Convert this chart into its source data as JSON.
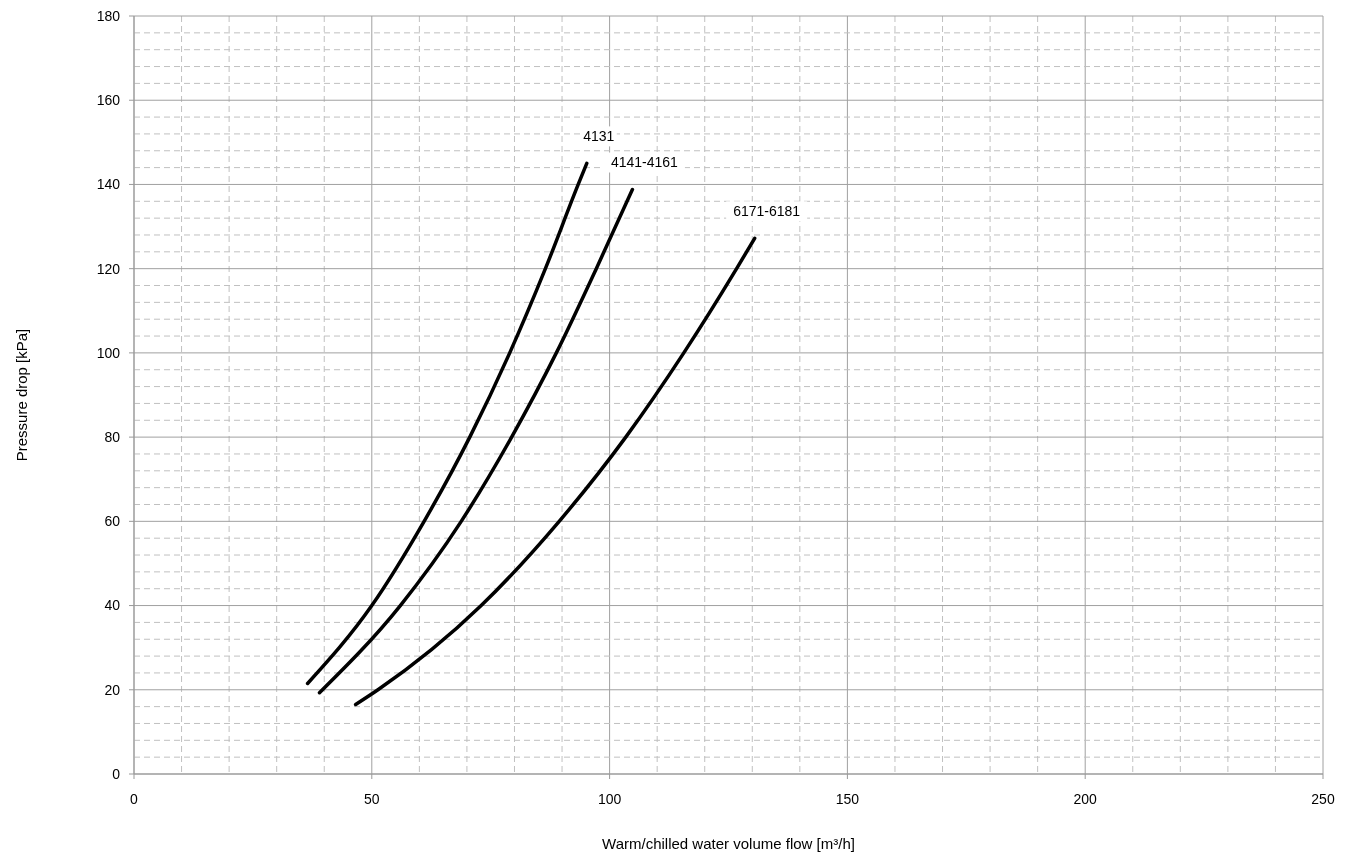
{
  "chart_data": {
    "type": "line",
    "xlabel": "Warm/chilled water volume flow [m³/h]",
    "ylabel": "Pressure drop [kPa]",
    "xlim": [
      0,
      250
    ],
    "ylim": [
      0,
      180
    ],
    "xticks": [
      0,
      {
        "value": 10,
        "label": null
      },
      {
        "value": 20,
        "label": null
      },
      {
        "value": 30,
        "label": null
      },
      {
        "value": 40,
        "label": null
      },
      50,
      {
        "value": 60,
        "label": null
      },
      {
        "value": 70,
        "label": null
      },
      {
        "value": 80,
        "label": null
      },
      {
        "value": 90,
        "label": null
      },
      100,
      {
        "value": 110,
        "label": null
      },
      {
        "value": 120,
        "label": null
      },
      {
        "value": 130,
        "label": null
      },
      {
        "value": 140,
        "label": null
      },
      150,
      {
        "value": 160,
        "label": null
      },
      {
        "value": 170,
        "label": null
      },
      {
        "value": 180,
        "label": null
      },
      {
        "value": 190,
        "label": null
      },
      200,
      {
        "value": 210,
        "label": null
      },
      {
        "value": 220,
        "label": null
      },
      {
        "value": 230,
        "label": null
      },
      {
        "value": 240,
        "label": null
      },
      250
    ],
    "yticks": [
      0,
      {
        "value": 4,
        "label": null
      },
      {
        "value": 8,
        "label": null
      },
      {
        "value": 12,
        "label": null
      },
      {
        "value": 16,
        "label": null
      },
      20,
      {
        "value": 24,
        "label": null
      },
      {
        "value": 28,
        "label": null
      },
      {
        "value": 32,
        "label": null
      },
      {
        "value": 36,
        "label": null
      },
      40,
      {
        "value": 44,
        "label": null
      },
      {
        "value": 48,
        "label": null
      },
      {
        "value": 52,
        "label": null
      },
      {
        "value": 56,
        "label": null
      },
      60,
      {
        "value": 64,
        "label": null
      },
      {
        "value": 68,
        "label": null
      },
      {
        "value": 72,
        "label": null
      },
      {
        "value": 76,
        "label": null
      },
      80,
      {
        "value": 84,
        "label": null
      },
      {
        "value": 88,
        "label": null
      },
      {
        "value": 92,
        "label": null
      },
      {
        "value": 96,
        "label": null
      },
      100,
      {
        "value": 104,
        "label": null
      },
      {
        "value": 108,
        "label": null
      },
      {
        "value": 112,
        "label": null
      },
      {
        "value": 116,
        "label": null
      },
      120,
      {
        "value": 124,
        "label": null
      },
      {
        "value": 128,
        "label": null
      },
      {
        "value": 132,
        "label": null
      },
      {
        "value": 136,
        "label": null
      },
      140,
      {
        "value": 144,
        "label": null
      },
      {
        "value": 148,
        "label": null
      },
      {
        "value": 152,
        "label": null
      },
      {
        "value": 156,
        "label": null
      },
      160,
      {
        "value": 164,
        "label": null
      },
      {
        "value": 168,
        "label": null
      },
      {
        "value": 172,
        "label": null
      },
      {
        "value": 176,
        "label": null
      },
      180
    ],
    "grid": true,
    "marker": "none",
    "line_style": "solid",
    "series": [
      {
        "color": "#000000",
        "x": [
          36.5,
          50,
          61,
          70.6,
          79,
          86.5,
          93.4,
          95.2
        ],
        "values": [
          21.5,
          40,
          60,
          80,
          100,
          120,
          140,
          145
        ]
      },
      {
        "color": "#000000",
        "x": [
          39,
          56,
          68.8,
          79.4,
          88.8,
          97.2,
          104.8
        ],
        "values": [
          19.3,
          40,
          60,
          80,
          100,
          120,
          138.8
        ]
      },
      {
        "color": "#000000",
        "x": [
          46.6,
          51.3,
          73,
          89.4,
          103.4,
          115.6,
          126.7,
          130.5
        ],
        "values": [
          16.5,
          20,
          40,
          60,
          80,
          100,
          120,
          127.2
        ]
      }
    ],
    "annotations": [
      {
        "text": "4131",
        "x": 95.2,
        "y": 145
      },
      {
        "text": "4141-4161",
        "x": 104.8,
        "y": 138.8
      },
      {
        "text": "6171-6181",
        "x": 130.5,
        "y": 127.2
      }
    ]
  }
}
